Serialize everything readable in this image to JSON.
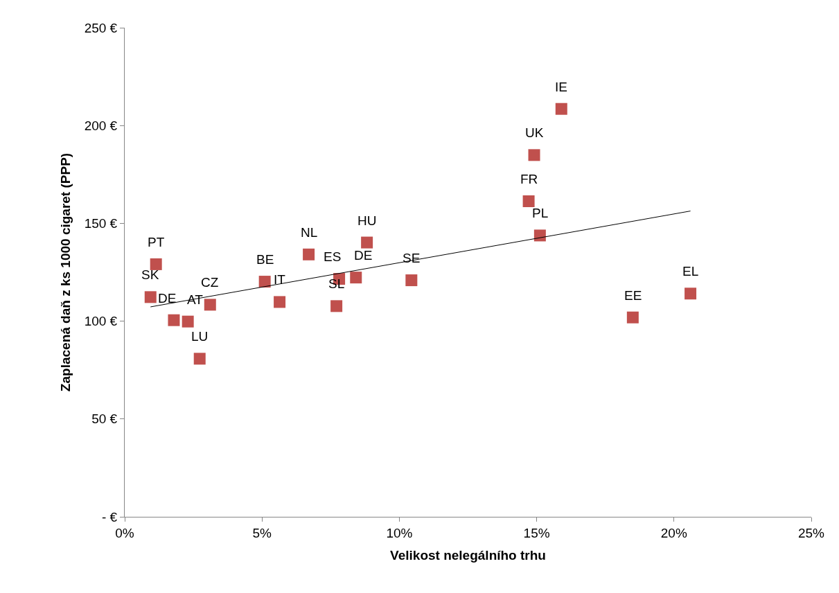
{
  "chart_data": {
    "type": "scatter",
    "xlabel": "Velikost nelegálního trhu",
    "ylabel": "Zaplacená daň z ks 1000 cigaret (PPP)",
    "xlim": [
      0,
      25
    ],
    "ylim": [
      0,
      250
    ],
    "xticks": [
      {
        "value": 0,
        "label": "0%"
      },
      {
        "value": 5,
        "label": "5%"
      },
      {
        "value": 10,
        "label": "10%"
      },
      {
        "value": 15,
        "label": "15%"
      },
      {
        "value": 20,
        "label": "20%"
      },
      {
        "value": 25,
        "label": "25%"
      }
    ],
    "yticks": [
      {
        "value": 0,
        "label": "- €"
      },
      {
        "value": 50,
        "label": "50 €"
      },
      {
        "value": 100,
        "label": "100 €"
      },
      {
        "value": 150,
        "label": "150 €"
      },
      {
        "value": 200,
        "label": "200 €"
      },
      {
        "value": 250,
        "label": "250 €"
      }
    ],
    "marker": "square",
    "series": [
      {
        "color": "#c0504d",
        "x": [
          0.94,
          1.14,
          1.79,
          2.3,
          2.73,
          3.11,
          5.1,
          5.64,
          6.7,
          7.71,
          7.81,
          8.42,
          8.82,
          10.44,
          14.71,
          14.91,
          15.12,
          15.9,
          18.5,
          20.6
        ],
        "values": [
          112.3,
          129.1,
          100.5,
          99.8,
          80.8,
          108.4,
          120.2,
          109.8,
          134.1,
          107.7,
          121.6,
          122.3,
          140.2,
          120.9,
          161.3,
          184.9,
          143.8,
          208.5,
          101.9,
          114.1
        ]
      },
      {
        "type": "line",
        "color": "#000000",
        "marker": "none",
        "x": [
          0.94,
          20.6
        ],
        "values": [
          107.3,
          156.3
        ]
      }
    ],
    "annotations": [
      {
        "text": "SK",
        "x": 0.94,
        "y": 112.3
      },
      {
        "text": "PT",
        "x": 1.14,
        "y": 129.1
      },
      {
        "text": "DE",
        "x": 1.79,
        "y": 100.5
      },
      {
        "text": "AT",
        "x": 2.3,
        "y": 99.8
      },
      {
        "text": "LU",
        "x": 2.73,
        "y": 80.8
      },
      {
        "text": "CZ",
        "x": 3.11,
        "y": 108.4
      },
      {
        "text": "BE",
        "x": 5.1,
        "y": 120.2
      },
      {
        "text": "IT",
        "x": 5.64,
        "y": 109.8
      },
      {
        "text": "NL",
        "x": 6.7,
        "y": 134.1
      },
      {
        "text": "SL",
        "x": 7.71,
        "y": 107.7
      },
      {
        "text": "ES",
        "x": 7.81,
        "y": 121.6
      },
      {
        "text": "DE",
        "x": 8.42,
        "y": 122.3
      },
      {
        "text": "HU",
        "x": 8.82,
        "y": 140.2
      },
      {
        "text": "SE",
        "x": 10.44,
        "y": 120.9
      },
      {
        "text": "FR",
        "x": 14.71,
        "y": 161.3
      },
      {
        "text": "UK",
        "x": 14.91,
        "y": 184.9
      },
      {
        "text": "PL",
        "x": 15.12,
        "y": 143.8
      },
      {
        "text": "IE",
        "x": 15.9,
        "y": 208.5
      },
      {
        "text": "EE",
        "x": 18.5,
        "y": 101.9
      },
      {
        "text": "EL",
        "x": 20.6,
        "y": 114.1
      }
    ]
  }
}
